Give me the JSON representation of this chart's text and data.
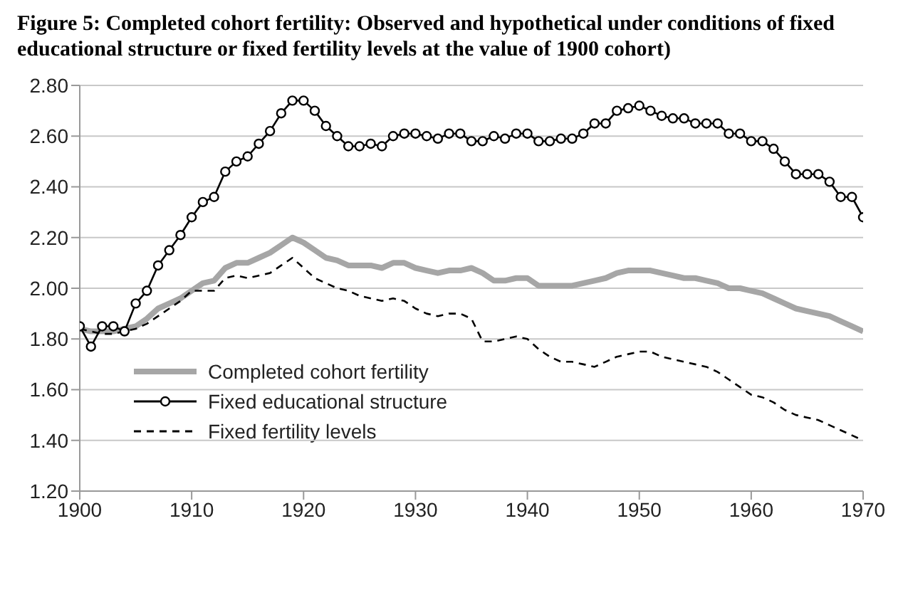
{
  "chart_data": {
    "type": "line",
    "title": "Figure 5: Completed cohort fertility: Observed and hypothetical under conditions of fixed educational structure or fixed fertility levels at the value of 1900 cohort)",
    "x": [
      1900,
      1901,
      1902,
      1903,
      1904,
      1905,
      1906,
      1907,
      1908,
      1909,
      1910,
      1911,
      1912,
      1913,
      1914,
      1915,
      1916,
      1917,
      1918,
      1919,
      1920,
      1921,
      1922,
      1923,
      1924,
      1925,
      1926,
      1927,
      1928,
      1929,
      1930,
      1931,
      1932,
      1933,
      1934,
      1935,
      1936,
      1937,
      1938,
      1939,
      1940,
      1941,
      1942,
      1943,
      1944,
      1945,
      1946,
      1947,
      1948,
      1949,
      1950,
      1951,
      1952,
      1953,
      1954,
      1955,
      1956,
      1957,
      1958,
      1959,
      1960,
      1961,
      1962,
      1963,
      1964,
      1965,
      1966,
      1967,
      1968,
      1969,
      1970
    ],
    "series": [
      {
        "name": "Completed cohort fertility",
        "color": "#a6a6a6",
        "marker": "none",
        "line_style": "solid",
        "values": [
          1.84,
          1.83,
          1.83,
          1.83,
          1.84,
          1.85,
          1.88,
          1.92,
          1.94,
          1.96,
          1.99,
          2.02,
          2.03,
          2.08,
          2.1,
          2.1,
          2.12,
          2.14,
          2.17,
          2.2,
          2.18,
          2.15,
          2.12,
          2.11,
          2.09,
          2.09,
          2.09,
          2.08,
          2.1,
          2.1,
          2.08,
          2.07,
          2.06,
          2.07,
          2.07,
          2.08,
          2.06,
          2.03,
          2.03,
          2.04,
          2.04,
          2.01,
          2.01,
          2.01,
          2.01,
          2.02,
          2.03,
          2.04,
          2.06,
          2.07,
          2.07,
          2.07,
          2.06,
          2.05,
          2.04,
          2.04,
          2.03,
          2.02,
          2.0,
          2.0,
          1.99,
          1.98,
          1.96,
          1.94,
          1.92,
          1.91,
          1.9,
          1.89,
          1.87,
          1.85,
          1.83
        ]
      },
      {
        "name": "Fixed educational structure",
        "color": "#000000",
        "marker": "circle",
        "line_style": "solid",
        "values": [
          1.85,
          1.77,
          1.85,
          1.85,
          1.83,
          1.94,
          1.99,
          2.09,
          2.15,
          2.21,
          2.28,
          2.34,
          2.36,
          2.46,
          2.5,
          2.52,
          2.57,
          2.62,
          2.69,
          2.74,
          2.74,
          2.7,
          2.64,
          2.6,
          2.56,
          2.56,
          2.57,
          2.56,
          2.6,
          2.61,
          2.61,
          2.6,
          2.59,
          2.61,
          2.61,
          2.58,
          2.58,
          2.6,
          2.59,
          2.61,
          2.61,
          2.58,
          2.58,
          2.59,
          2.59,
          2.61,
          2.65,
          2.65,
          2.7,
          2.71,
          2.72,
          2.7,
          2.68,
          2.67,
          2.67,
          2.65,
          2.65,
          2.65,
          2.61,
          2.61,
          2.58,
          2.58,
          2.55,
          2.5,
          2.45,
          2.45,
          2.45,
          2.42,
          2.36,
          2.36,
          2.28
        ]
      },
      {
        "name": "Fixed fertility levels",
        "color": "#000000",
        "marker": "none",
        "line_style": "dashed",
        "values": [
          1.84,
          1.83,
          1.82,
          1.82,
          1.83,
          1.84,
          1.86,
          1.89,
          1.92,
          1.95,
          1.99,
          1.99,
          1.99,
          2.04,
          2.05,
          2.04,
          2.05,
          2.06,
          2.09,
          2.12,
          2.08,
          2.04,
          2.02,
          2.0,
          1.99,
          1.97,
          1.96,
          1.95,
          1.96,
          1.95,
          1.92,
          1.9,
          1.89,
          1.9,
          1.9,
          1.88,
          1.79,
          1.79,
          1.8,
          1.81,
          1.8,
          1.76,
          1.73,
          1.71,
          1.71,
          1.7,
          1.69,
          1.71,
          1.73,
          1.74,
          1.75,
          1.75,
          1.73,
          1.72,
          1.71,
          1.7,
          1.69,
          1.67,
          1.64,
          1.61,
          1.58,
          1.57,
          1.55,
          1.52,
          1.5,
          1.49,
          1.48,
          1.46,
          1.44,
          1.42,
          1.4
        ]
      }
    ],
    "xlim": [
      1900,
      1970
    ],
    "xticks": [
      1900,
      1910,
      1920,
      1930,
      1940,
      1950,
      1960,
      1970
    ],
    "ylim": [
      1.2,
      2.8
    ],
    "yticks": [
      {
        "value": 1.2,
        "label": "1.20"
      },
      {
        "value": 1.4,
        "label": "1.40"
      },
      {
        "value": 1.6,
        "label": "1.60"
      },
      {
        "value": 1.8,
        "label": "1.80"
      },
      {
        "value": 2.0,
        "label": "2.00"
      },
      {
        "value": 2.2,
        "label": "2.20"
      },
      {
        "value": 2.4,
        "label": "2.40"
      },
      {
        "value": 2.6,
        "label": "2.60"
      },
      {
        "value": 2.8,
        "label": "2.80"
      }
    ],
    "grid": "y",
    "legend": "bottom left"
  }
}
